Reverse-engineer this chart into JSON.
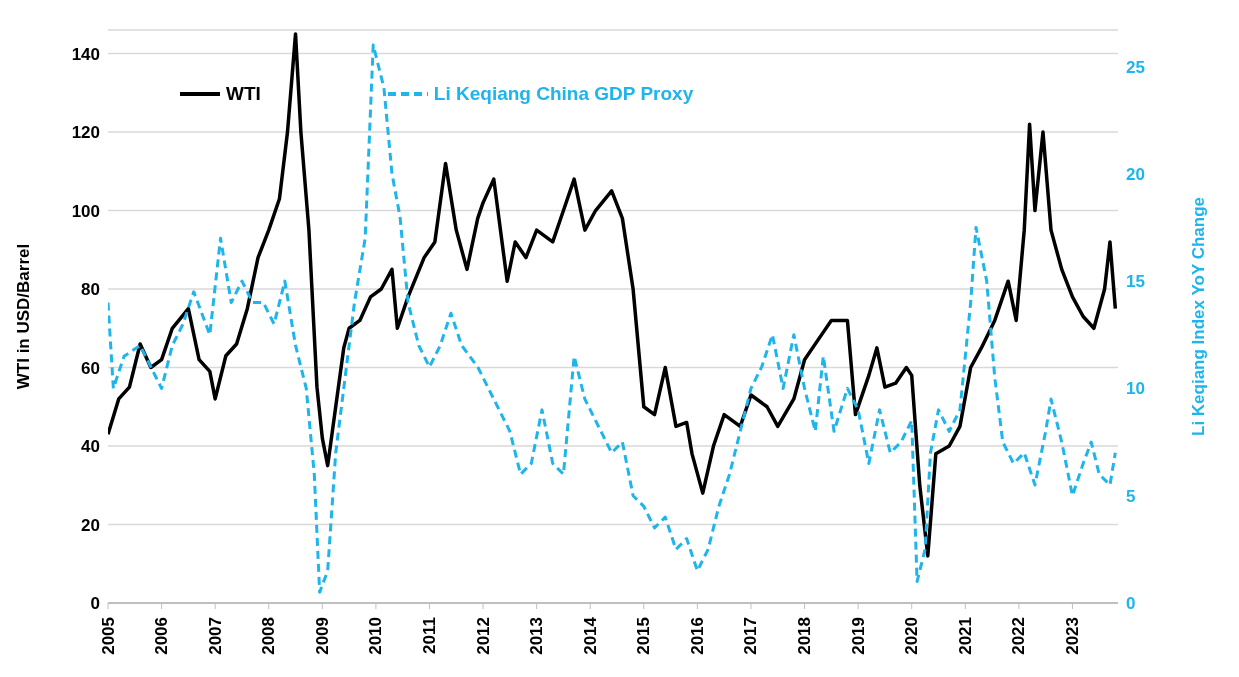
{
  "chart_data": {
    "type": "line",
    "ylabel": "WTI in USD/Barrel",
    "y2label": "Li Keqiang Index YoY Change",
    "xlim": [
      2005,
      2023.85
    ],
    "xticks": [
      2005,
      2006,
      2007,
      2008,
      2009,
      2010,
      2011,
      2012,
      2013,
      2014,
      2015,
      2016,
      2017,
      2018,
      2019,
      2020,
      2021,
      2022,
      2023
    ],
    "ylim": [
      0,
      146
    ],
    "yticks": [
      0,
      20,
      40,
      60,
      80,
      100,
      120,
      140
    ],
    "y2lim": [
      0,
      26.7
    ],
    "y2ticks": [
      0,
      5,
      10,
      15,
      20,
      25
    ],
    "grid": "y",
    "legend": "top left",
    "marker": "none",
    "series": [
      {
        "name": "WTI",
        "color": "#000000",
        "line_style": "solid",
        "x": [
          2005.0,
          2005.2,
          2005.4,
          2005.6,
          2005.8,
          2006.0,
          2006.2,
          2006.5,
          2006.7,
          2006.9,
          2007.0,
          2007.2,
          2007.4,
          2007.6,
          2007.8,
          2008.0,
          2008.2,
          2008.35,
          2008.5,
          2008.6,
          2008.75,
          2008.9,
          2009.0,
          2009.1,
          2009.25,
          2009.4,
          2009.5,
          2009.7,
          2009.9,
          2010.1,
          2010.3,
          2010.4,
          2010.6,
          2010.9,
          2011.1,
          2011.3,
          2011.5,
          2011.7,
          2011.9,
          2012.0,
          2012.2,
          2012.45,
          2012.6,
          2012.8,
          2013.0,
          2013.3,
          2013.5,
          2013.7,
          2013.9,
          2014.1,
          2014.4,
          2014.6,
          2014.8,
          2015.0,
          2015.2,
          2015.4,
          2015.6,
          2015.8,
          2015.9,
          2016.1,
          2016.3,
          2016.5,
          2016.8,
          2017.0,
          2017.3,
          2017.5,
          2017.8,
          2018.0,
          2018.3,
          2018.5,
          2018.8,
          2018.95,
          2019.2,
          2019.35,
          2019.5,
          2019.7,
          2019.9,
          2020.0,
          2020.15,
          2020.3,
          2020.45,
          2020.7,
          2020.9,
          2021.1,
          2021.3,
          2021.55,
          2021.8,
          2021.95,
          2022.1,
          2022.2,
          2022.3,
          2022.45,
          2022.6,
          2022.8,
          2023.0,
          2023.2,
          2023.4,
          2023.6,
          2023.7,
          2023.8
        ],
        "values": [
          43,
          52,
          55,
          66,
          60,
          62,
          70,
          75,
          62,
          59,
          52,
          63,
          66,
          75,
          88,
          95,
          103,
          120,
          145,
          120,
          95,
          55,
          42,
          35,
          50,
          65,
          70,
          72,
          78,
          80,
          85,
          70,
          78,
          88,
          92,
          112,
          95,
          85,
          98,
          102,
          108,
          82,
          92,
          88,
          95,
          92,
          100,
          108,
          95,
          100,
          105,
          98,
          80,
          50,
          48,
          60,
          45,
          46,
          38,
          28,
          40,
          48,
          45,
          53,
          50,
          45,
          52,
          62,
          68,
          72,
          72,
          48,
          58,
          65,
          55,
          56,
          60,
          58,
          30,
          12,
          38,
          40,
          45,
          60,
          65,
          72,
          82,
          72,
          95,
          122,
          100,
          120,
          95,
          85,
          78,
          73,
          70,
          80,
          92,
          75
        ]
      },
      {
        "name": "Li Keqiang China GDP Proxy",
        "color": "#1eb4ec",
        "line_style": "dashed",
        "axis": "y2",
        "x": [
          2005.0,
          2005.1,
          2005.3,
          2005.6,
          2005.8,
          2006.0,
          2006.2,
          2006.4,
          2006.6,
          2006.9,
          2007.1,
          2007.3,
          2007.5,
          2007.7,
          2007.9,
          2008.1,
          2008.3,
          2008.5,
          2008.7,
          2008.85,
          2008.95,
          2009.1,
          2009.25,
          2009.4,
          2009.6,
          2009.8,
          2009.95,
          2010.15,
          2010.3,
          2010.45,
          2010.6,
          2010.8,
          2011.0,
          2011.2,
          2011.4,
          2011.6,
          2011.9,
          2012.1,
          2012.3,
          2012.5,
          2012.7,
          2012.9,
          2013.1,
          2013.3,
          2013.5,
          2013.7,
          2013.9,
          2014.1,
          2014.4,
          2014.6,
          2014.8,
          2015.0,
          2015.2,
          2015.4,
          2015.6,
          2015.8,
          2016.0,
          2016.2,
          2016.4,
          2016.6,
          2016.8,
          2017.0,
          2017.2,
          2017.4,
          2017.6,
          2017.8,
          2018.0,
          2018.2,
          2018.35,
          2018.55,
          2018.8,
          2019.0,
          2019.2,
          2019.4,
          2019.6,
          2019.8,
          2020.0,
          2020.1,
          2020.25,
          2020.35,
          2020.5,
          2020.7,
          2020.9,
          2021.1,
          2021.2,
          2021.4,
          2021.55,
          2021.7,
          2021.9,
          2022.1,
          2022.3,
          2022.5,
          2022.6,
          2022.8,
          2023.0,
          2023.2,
          2023.35,
          2023.5,
          2023.7,
          2023.8
        ],
        "values": [
          14,
          10,
          11.5,
          12,
          11,
          10,
          12,
          13,
          14.5,
          12.5,
          17,
          14,
          15,
          14,
          14,
          13,
          15,
          12,
          10,
          6,
          0.5,
          1.5,
          7,
          10,
          14,
          17,
          26,
          24,
          20,
          18,
          14,
          12,
          11,
          12,
          13.5,
          12,
          11,
          10,
          9,
          8,
          6,
          6.5,
          9,
          6.5,
          6,
          11.5,
          9.5,
          8.5,
          7,
          7.5,
          5,
          4.5,
          3.5,
          4,
          2.5,
          3,
          1.5,
          2.5,
          4.5,
          6,
          8,
          10,
          11,
          12.5,
          10,
          12.5,
          10,
          8,
          11.5,
          8,
          10,
          9,
          6.5,
          9,
          7,
          7.5,
          8.5,
          1,
          2.5,
          7,
          9,
          8,
          9,
          14,
          17.5,
          15,
          10.5,
          7.5,
          6.5,
          7,
          5.5,
          8,
          9.5,
          7.5,
          5,
          6.5,
          7.5,
          6,
          5.5,
          7
        ]
      }
    ]
  }
}
